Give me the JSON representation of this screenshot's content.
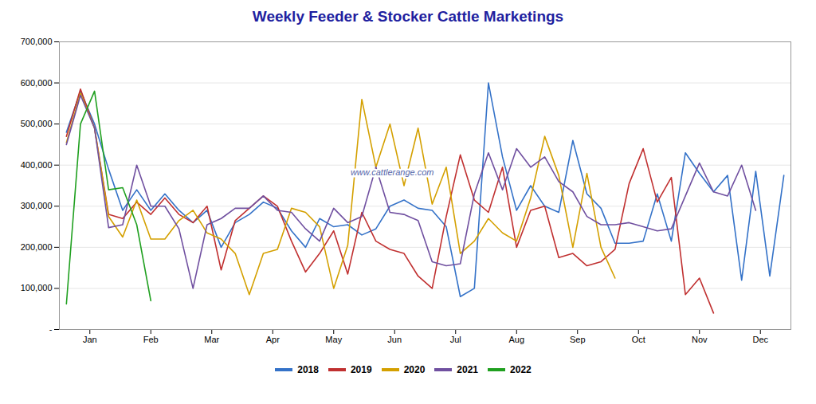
{
  "chart_data": {
    "type": "line",
    "title": "Weekly Feeder & Stocker Cattle Marketings",
    "x": [
      1,
      2,
      3,
      4,
      5,
      6,
      7,
      8,
      9,
      10,
      11,
      12,
      13,
      14,
      15,
      16,
      17,
      18,
      19,
      20,
      21,
      22,
      23,
      24,
      25,
      26,
      27,
      28,
      29,
      30,
      31,
      32,
      33,
      34,
      35,
      36,
      37,
      38,
      39,
      40,
      41,
      42,
      43,
      44,
      45,
      46,
      47,
      48,
      49,
      50,
      51,
      52
    ],
    "xlim": [
      0.5,
      52.5
    ],
    "xticks": [
      {
        "value": 2.6667,
        "label": "Jan"
      },
      {
        "value": 7,
        "label": "Feb"
      },
      {
        "value": 11.3333,
        "label": "Mar"
      },
      {
        "value": 15.6667,
        "label": "Apr"
      },
      {
        "value": 20,
        "label": "May"
      },
      {
        "value": 24.3333,
        "label": "Jun"
      },
      {
        "value": 28.6667,
        "label": "Jul"
      },
      {
        "value": 33,
        "label": "Aug"
      },
      {
        "value": 37.3333,
        "label": "Sep"
      },
      {
        "value": 41.6667,
        "label": "Oct"
      },
      {
        "value": 46,
        "label": "Nov"
      },
      {
        "value": 50.3333,
        "label": "Dec"
      }
    ],
    "ylim": [
      0,
      700000
    ],
    "yticks": [
      {
        "value": 0,
        "label": "-"
      },
      {
        "value": 100000,
        "label": "100,000"
      },
      {
        "value": 200000,
        "label": "200,000"
      },
      {
        "value": 300000,
        "label": "300,000"
      },
      {
        "value": 400000,
        "label": "400,000"
      },
      {
        "value": 500000,
        "label": "500,000"
      },
      {
        "value": 600000,
        "label": "600,000"
      },
      {
        "value": 700000,
        "label": "700,000"
      }
    ],
    "grid": true,
    "legend": "bottom",
    "annotations": [
      "www.cattlerange.com"
    ],
    "series": [
      {
        "name": "2018",
        "color": "#3472C8",
        "values": [
          480000,
          580000,
          500000,
          390000,
          290000,
          340000,
          290000,
          330000,
          290000,
          260000,
          290000,
          200000,
          260000,
          280000,
          310000,
          295000,
          240000,
          200000,
          270000,
          250000,
          255000,
          230000,
          245000,
          300000,
          315000,
          295000,
          290000,
          250000,
          80000,
          100000,
          600000,
          420000,
          290000,
          350000,
          300000,
          285000,
          460000,
          330000,
          295000,
          210000,
          210000,
          215000,
          330000,
          215000,
          430000,
          380000,
          335000,
          375000,
          120000,
          385000,
          130000,
          375000
        ]
      },
      {
        "name": "2019",
        "color": "#C03030",
        "values": [
          470000,
          585000,
          490000,
          280000,
          270000,
          310000,
          280000,
          320000,
          280000,
          260000,
          300000,
          145000,
          265000,
          295000,
          325000,
          300000,
          215000,
          140000,
          185000,
          240000,
          135000,
          285000,
          215000,
          195000,
          185000,
          130000,
          100000,
          275000,
          425000,
          315000,
          285000,
          395000,
          200000,
          290000,
          300000,
          175000,
          185000,
          155000,
          165000,
          195000,
          355000,
          440000,
          310000,
          370000,
          85000,
          125000,
          40000,
          null,
          null,
          null,
          null,
          null
        ]
      },
      {
        "name": "2020",
        "color": "#D4A000",
        "values": [
          455000,
          575000,
          490000,
          275000,
          225000,
          315000,
          220000,
          220000,
          265000,
          290000,
          235000,
          220000,
          185000,
          85000,
          185000,
          195000,
          295000,
          285000,
          250000,
          100000,
          205000,
          560000,
          395000,
          500000,
          350000,
          490000,
          305000,
          395000,
          185000,
          215000,
          270000,
          235000,
          215000,
          320000,
          470000,
          375000,
          200000,
          380000,
          200000,
          125000,
          null,
          null,
          null,
          null,
          null,
          null,
          null,
          null,
          null,
          null,
          null,
          null
        ]
      },
      {
        "name": "2021",
        "color": "#7050A0",
        "values": [
          450000,
          570000,
          490000,
          248000,
          255000,
          400000,
          300000,
          300000,
          245000,
          100000,
          255000,
          270000,
          295000,
          295000,
          325000,
          290000,
          285000,
          245000,
          215000,
          295000,
          260000,
          275000,
          395000,
          285000,
          280000,
          265000,
          165000,
          155000,
          160000,
          330000,
          430000,
          340000,
          440000,
          395000,
          420000,
          360000,
          335000,
          275000,
          255000,
          255000,
          260000,
          250000,
          240000,
          245000,
          325000,
          405000,
          335000,
          325000,
          400000,
          290000,
          null,
          null
        ]
      },
      {
        "name": "2022",
        "color": "#20A020",
        "values": [
          62000,
          500000,
          580000,
          340000,
          345000,
          255000,
          70000,
          null,
          null,
          null,
          null,
          null,
          null,
          null,
          null,
          null,
          null,
          null,
          null,
          null,
          null,
          null,
          null,
          null,
          null,
          null,
          null,
          null,
          null,
          null,
          null,
          null,
          null,
          null,
          null,
          null,
          null,
          null,
          null,
          null,
          null,
          null,
          null,
          null,
          null,
          null,
          null,
          null,
          null,
          null,
          null,
          null
        ]
      }
    ]
  }
}
